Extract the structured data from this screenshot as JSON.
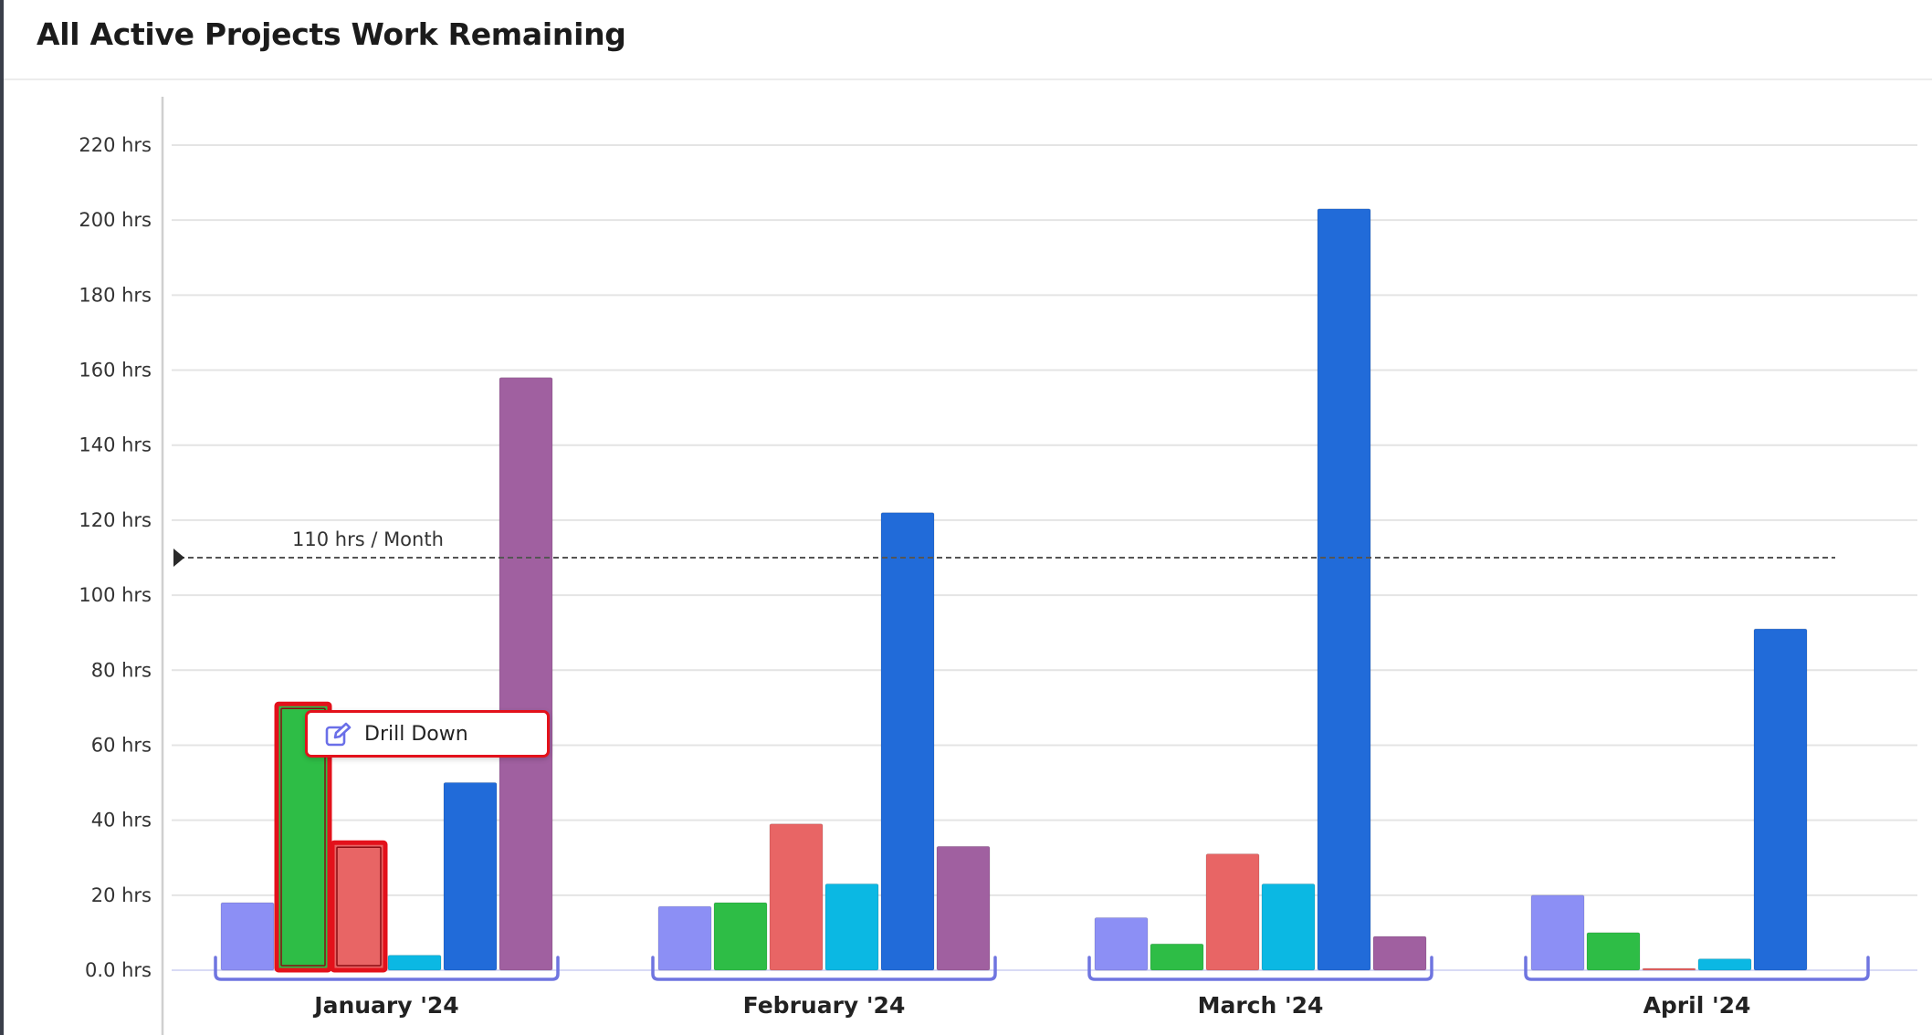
{
  "panel": {
    "title": "All Active Projects Work Remaining"
  },
  "context_menu": {
    "drill_down_label": "Drill Down",
    "icon": "edit-icon"
  },
  "colors": {
    "series": [
      "#8c8ff5",
      "#2ebd46",
      "#e86565",
      "#0bb8e3",
      "#216bd9",
      "#a060a0"
    ],
    "highlight": "#e3111b",
    "group_bracket": "#6f75e0",
    "gridline": "#e4e4e4",
    "axis": "#cfcfcf",
    "reference_line": "#555555"
  },
  "chart_data": {
    "type": "bar",
    "title": "All Active Projects Work Remaining",
    "xlabel": "",
    "ylabel": "",
    "ylim": [
      0,
      220
    ],
    "y_ticks": [
      "0.0 hrs",
      "20 hrs",
      "40 hrs",
      "60 hrs",
      "80 hrs",
      "100 hrs",
      "120 hrs",
      "140 hrs",
      "160 hrs",
      "180 hrs",
      "200 hrs",
      "220 hrs"
    ],
    "y_tick_values": [
      0,
      20,
      40,
      60,
      80,
      100,
      120,
      140,
      160,
      180,
      200,
      220
    ],
    "categories": [
      "January '24",
      "February '24",
      "March '24",
      "April '24"
    ],
    "series": [
      {
        "values": [
          18,
          17,
          14,
          20
        ]
      },
      {
        "values": [
          71,
          18,
          7,
          10
        ]
      },
      {
        "values": [
          34,
          39,
          31,
          0.5
        ]
      },
      {
        "values": [
          4,
          23,
          23,
          3
        ]
      },
      {
        "values": [
          50,
          122,
          203,
          91
        ]
      },
      {
        "values": [
          158,
          33,
          9,
          0
        ]
      }
    ],
    "highlighted_bars": [
      {
        "category": "January '24",
        "series_index": 1
      },
      {
        "category": "January '24",
        "series_index": 2
      }
    ],
    "reference_line": {
      "value": 110,
      "label": "110 hrs / Month"
    },
    "grid": true,
    "legend": "none"
  }
}
